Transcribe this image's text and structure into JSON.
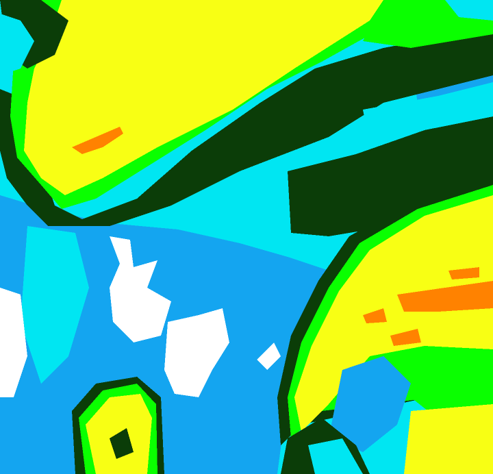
{
  "image": {
    "kind": "false-color satellite imagery",
    "palette": {
      "cyan": "#00e6f2",
      "blue": "#14a5f0",
      "white": "#ffffff",
      "yellow": "#f8ff14",
      "green": "#0aff00",
      "dark_green": "#0b3d08",
      "orange": "#ff8200",
      "red": "#ff3000"
    }
  }
}
